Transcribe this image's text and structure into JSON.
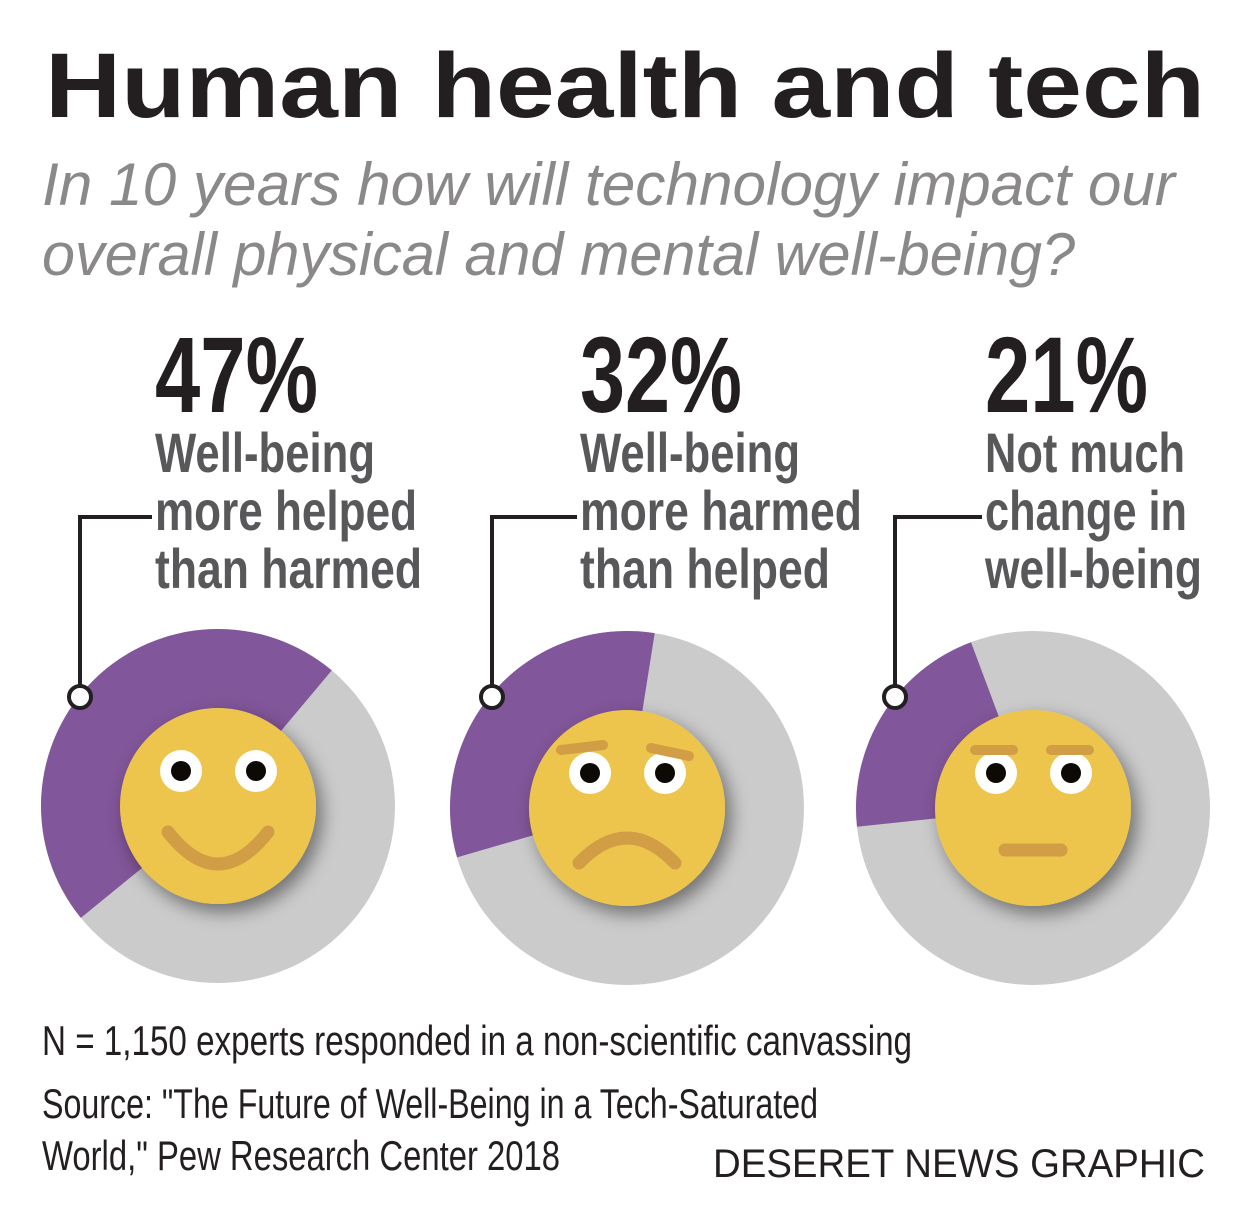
{
  "title": "Human health and tech",
  "subtitle": [
    "In 10 years how will technology impact our",
    "overall physical and mental well-being?"
  ],
  "chart_data": {
    "type": "pie",
    "title": "Human health and tech",
    "series": [
      {
        "name": "Well-being more helped than harmed",
        "percent_label": "47%",
        "value": 47,
        "label_lines": [
          "Well-being",
          "more helped",
          "than harmed"
        ],
        "mood": "happy"
      },
      {
        "name": "Well-being more harmed than helped",
        "percent_label": "32%",
        "value": 32,
        "label_lines": [
          "Well-being",
          "more harmed",
          "than helped"
        ],
        "mood": "sad"
      },
      {
        "name": "Not much change in well-being",
        "percent_label": "21%",
        "value": 21,
        "label_lines": [
          "Not much",
          "change in",
          "well-being"
        ],
        "mood": "neutral"
      }
    ],
    "colors": {
      "highlight": "#82569a",
      "rest": "#cbcbcb",
      "face": "#edc54e",
      "mouth": "#d19d45"
    }
  },
  "footnote": "N = 1,150 experts responded in a non-scientific canvassing",
  "source": [
    "Source: \"The Future of Well-Being in a Tech-Saturated",
    "World,\" Pew Research Center 2018"
  ],
  "credit": "DESERET NEWS GRAPHIC"
}
